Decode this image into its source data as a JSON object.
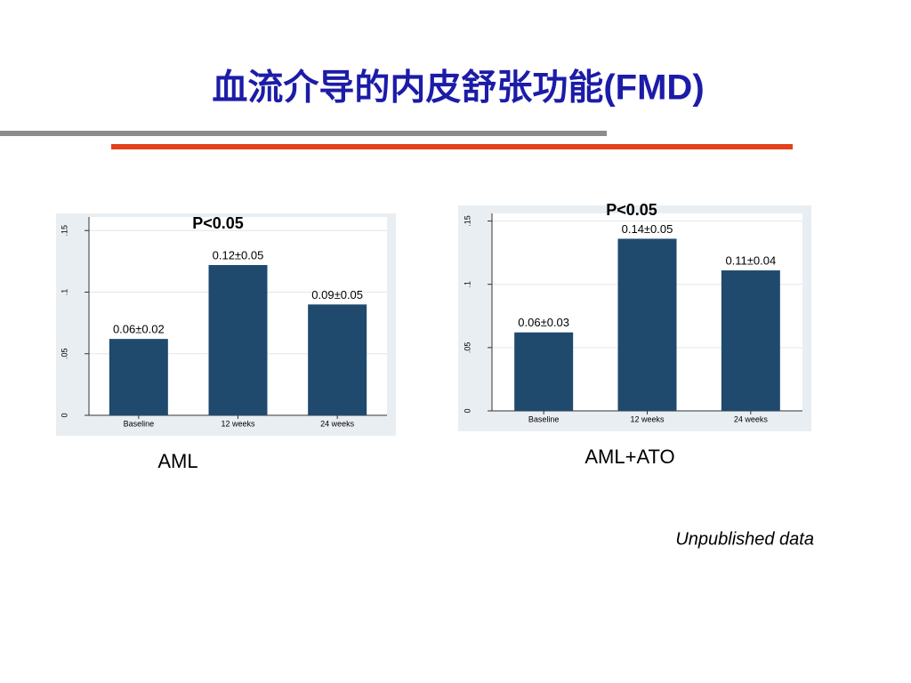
{
  "slide": {
    "title": "血流介导的内皮舒张功能(FMD)",
    "note": "Unpublished data"
  },
  "chart_data": [
    {
      "type": "bar",
      "caption": "AML",
      "annotation": "P<0.05",
      "categories": [
        "Baseline",
        "12 weeks",
        "24 weeks"
      ],
      "values": [
        0.062,
        0.122,
        0.09
      ],
      "value_labels": [
        "0.06±0.02",
        "0.12±0.05",
        "0.09±0.05"
      ],
      "color": "#1f4a6e",
      "ylim": [
        0,
        0.161
      ],
      "yticks": [
        0,
        {
          "value": 0.05,
          "label": ".05"
        },
        {
          "value": 0.1,
          "label": ".1"
        },
        {
          "value": 0.15,
          "label": ".15"
        }
      ],
      "grid": true
    },
    {
      "type": "bar",
      "caption": "AML+ATO",
      "annotation": "P<0.05",
      "categories": [
        "Baseline",
        "12 weeks",
        "24 weeks"
      ],
      "values": [
        0.062,
        0.136,
        0.111
      ],
      "value_labels": [
        "0.06±0.03",
        "0.14±0.05",
        "0.11±0.04"
      ],
      "color": "#1f4a6e",
      "ylim": [
        0,
        0.156
      ],
      "yticks": [
        0,
        {
          "value": 0.05,
          "label": ".05"
        },
        {
          "value": 0.1,
          "label": ".1"
        },
        {
          "value": 0.15,
          "label": ".15"
        }
      ],
      "grid": true
    }
  ]
}
